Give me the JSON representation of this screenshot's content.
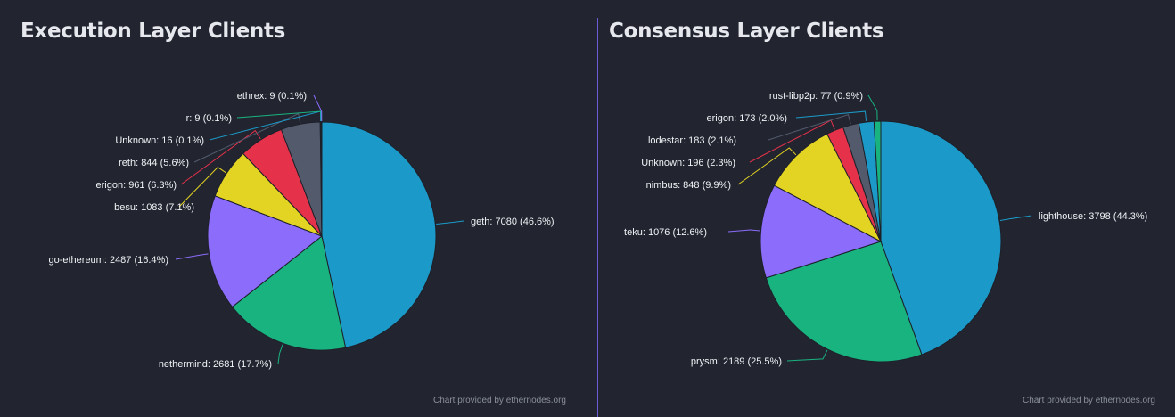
{
  "chart_data": [
    {
      "type": "pie",
      "title": "Execution Layer Clients",
      "credit": "Chart provided by ethernodes.org",
      "slices": [
        {
          "name": "geth",
          "value": 7080,
          "percent": "46.6%",
          "color": "#1b9ac9"
        },
        {
          "name": "nethermind",
          "value": 2681,
          "percent": "17.7%",
          "color": "#19b380"
        },
        {
          "name": "go-ethereum",
          "value": 2487,
          "percent": "16.4%",
          "color": "#8b6cfb"
        },
        {
          "name": "besu",
          "value": 1083,
          "percent": "7.1%",
          "color": "#e3d322"
        },
        {
          "name": "erigon",
          "value": 961,
          "percent": "6.3%",
          "color": "#e5314a"
        },
        {
          "name": "reth",
          "value": 844,
          "percent": "5.6%",
          "color": "#525a6c"
        },
        {
          "name": "Unknown",
          "value": 16,
          "percent": "0.1%",
          "color": "#1b9ac9"
        },
        {
          "name": "r",
          "value": 9,
          "percent": "0.1%",
          "color": "#19b380"
        },
        {
          "name": "ethrex",
          "value": 9,
          "percent": "0.1%",
          "color": "#8b6cfb"
        }
      ]
    },
    {
      "type": "pie",
      "title": "Consensus Layer Clients",
      "credit": "Chart provided by ethernodes.org",
      "slices": [
        {
          "name": "lighthouse",
          "value": 3798,
          "percent": "44.3%",
          "color": "#1b9ac9"
        },
        {
          "name": "prysm",
          "value": 2189,
          "percent": "25.5%",
          "color": "#19b380"
        },
        {
          "name": "teku",
          "value": 1076,
          "percent": "12.6%",
          "color": "#8b6cfb"
        },
        {
          "name": "nimbus",
          "value": 848,
          "percent": "9.9%",
          "color": "#e3d322"
        },
        {
          "name": "Unknown",
          "value": 196,
          "percent": "2.3%",
          "color": "#e5314a"
        },
        {
          "name": "lodestar",
          "value": 183,
          "percent": "2.1%",
          "color": "#525a6c"
        },
        {
          "name": "erigon",
          "value": 173,
          "percent": "2.0%",
          "color": "#1b9ac9"
        },
        {
          "name": "rust-libp2p",
          "value": 77,
          "percent": "0.9%",
          "color": "#19b380"
        }
      ]
    }
  ]
}
